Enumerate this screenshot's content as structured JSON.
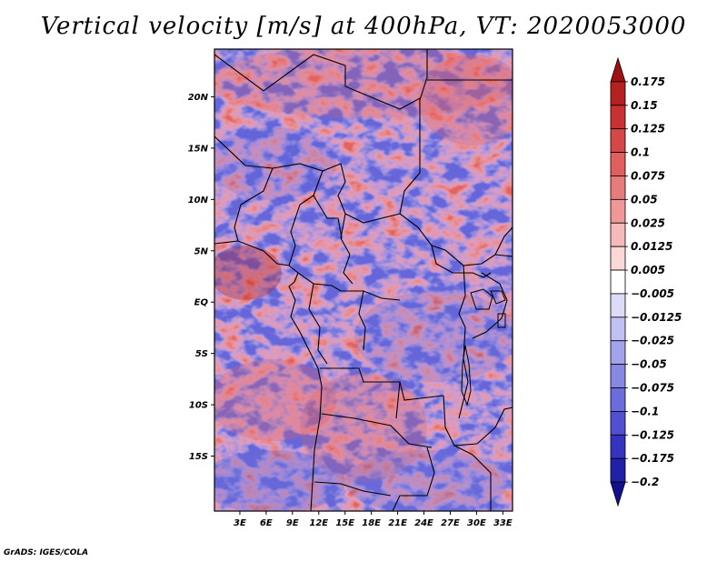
{
  "title": "Vertical velocity [m/s] at 400hPa, VT: 2020053000",
  "footer": "GrADS: IGES/COLA",
  "map": {
    "lat_labels": [
      "20N",
      "15N",
      "10N",
      "5N",
      "EQ",
      "5S",
      "10S",
      "15S"
    ],
    "lon_labels": [
      "3E",
      "6E",
      "9E",
      "12E",
      "15E",
      "18E",
      "21E",
      "24E",
      "27E",
      "30E",
      "33E"
    ],
    "lat_range": [
      -20,
      25
    ],
    "lon_range": [
      0,
      34
    ]
  },
  "colorbar": {
    "labels": [
      "0.175",
      "0.15",
      "0.125",
      "0.1",
      "0.075",
      "0.05",
      "0.025",
      "0.0125",
      "0.005",
      "-0.005",
      "-0.0125",
      "-0.025",
      "-0.05",
      "-0.075",
      "-0.1",
      "-0.125",
      "-0.175",
      "-0.2"
    ],
    "colors": [
      "#a01010",
      "#b52020",
      "#c83232",
      "#d64848",
      "#e06060",
      "#e87c7c",
      "#f09898",
      "#f7baba",
      "#fbd8d8",
      "#ffffff",
      "#dcdcf8",
      "#c0c0f2",
      "#a4a4ec",
      "#8888e4",
      "#6c6cdc",
      "#5050d0",
      "#3434c0",
      "#2020a8",
      "#101090"
    ]
  },
  "palette": {
    "red": "#e05050",
    "blue": "#5858d8",
    "border": "#000000"
  }
}
